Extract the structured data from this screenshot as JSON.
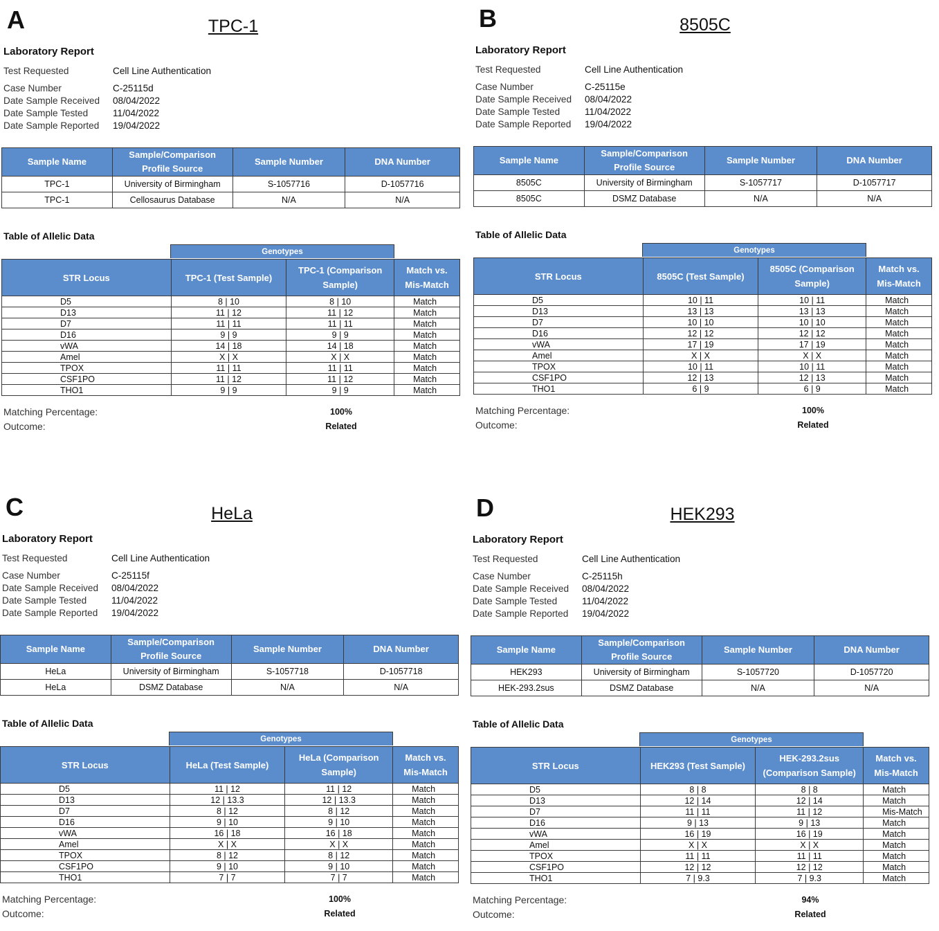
{
  "panels": [
    {
      "label": "A",
      "title": "TPC-1",
      "report_heading": "Laboratory Report",
      "info": [
        {
          "key": "Test Requested",
          "value": "Cell Line Authentication"
        },
        {
          "key": "Case Number",
          "value": "C-25115d"
        },
        {
          "key": "Date Sample Received",
          "value": "08/04/2022"
        },
        {
          "key": "Date Sample Tested",
          "value": "11/04/2022"
        },
        {
          "key": "Date Sample Reported",
          "value": "19/04/2022"
        }
      ],
      "sample_headers": [
        "Sample Name",
        "Sample/Comparison Profile Source",
        "Sample Number",
        "DNA Number"
      ],
      "sample_rows": [
        [
          "TPC-1",
          "University of Birmingham",
          "S-1057716",
          "D-1057716"
        ],
        [
          "TPC-1",
          "Cellosaurus Database",
          "N/A",
          "N/A"
        ]
      ],
      "allelic_title": "Table of Allelic Data",
      "genotypes_label": "Genotypes",
      "allelic_headers": [
        "STR Locus",
        "TPC-1 (Test Sample)",
        "TPC-1 (Comparison Sample)",
        "Match vs. Mis-Match"
      ],
      "allelic_rows": [
        [
          "D5",
          "8 | 10",
          "8 | 10",
          "Match"
        ],
        [
          "D13",
          "11 | 12",
          "11 | 12",
          "Match"
        ],
        [
          "D7",
          "11 | 11",
          "11 | 11",
          "Match"
        ],
        [
          "D16",
          "9 | 9",
          "9 | 9",
          "Match"
        ],
        [
          "vWA",
          "14 | 18",
          "14 | 18",
          "Match"
        ],
        [
          "Amel",
          "X | X",
          "X | X",
          "Match"
        ],
        [
          "TPOX",
          "11 | 11",
          "11 | 11",
          "Match"
        ],
        [
          "CSF1PO",
          "11 | 12",
          "11 | 12",
          "Match"
        ],
        [
          "THO1",
          "9 | 9",
          "9 | 9",
          "Match"
        ]
      ],
      "matching_label": "Matching Percentage:",
      "matching_value": "100%",
      "outcome_label": "Outcome:",
      "outcome_value": "Related"
    },
    {
      "label": "B",
      "title": "8505C",
      "report_heading": "Laboratory Report",
      "info": [
        {
          "key": "Test Requested",
          "value": "Cell Line Authentication"
        },
        {
          "key": "Case Number",
          "value": "C-25115e"
        },
        {
          "key": "Date Sample Received",
          "value": "08/04/2022"
        },
        {
          "key": "Date Sample Tested",
          "value": "11/04/2022"
        },
        {
          "key": "Date Sample Reported",
          "value": "19/04/2022"
        }
      ],
      "sample_headers": [
        "Sample Name",
        "Sample/Comparison Profile Source",
        "Sample Number",
        "DNA Number"
      ],
      "sample_rows": [
        [
          "8505C",
          "University of Birmingham",
          "S-1057717",
          "D-1057717"
        ],
        [
          "8505C",
          "DSMZ Database",
          "N/A",
          "N/A"
        ]
      ],
      "allelic_title": "Table of Allelic Data",
      "genotypes_label": "Genotypes",
      "allelic_headers": [
        "STR Locus",
        "8505C (Test Sample)",
        "8505C (Comparison Sample)",
        "Match vs. Mis-Match"
      ],
      "allelic_rows": [
        [
          "D5",
          "10 | 11",
          "10 | 11",
          "Match"
        ],
        [
          "D13",
          "13 | 13",
          "13 | 13",
          "Match"
        ],
        [
          "D7",
          "10 | 10",
          "10 | 10",
          "Match"
        ],
        [
          "D16",
          "12 | 12",
          "12 | 12",
          "Match"
        ],
        [
          "vWA",
          "17 | 19",
          "17 | 19",
          "Match"
        ],
        [
          "Amel",
          "X | X",
          "X | X",
          "Match"
        ],
        [
          "TPOX",
          "10 | 11",
          "10 | 11",
          "Match"
        ],
        [
          "CSF1PO",
          "12 | 13",
          "12 | 13",
          "Match"
        ],
        [
          "THO1",
          "6 | 9",
          "6 | 9",
          "Match"
        ]
      ],
      "matching_label": "Matching Percentage:",
      "matching_value": "100%",
      "outcome_label": "Outcome:",
      "outcome_value": "Related"
    },
    {
      "label": "C",
      "title": "HeLa",
      "report_heading": "Laboratory Report",
      "info": [
        {
          "key": "Test Requested",
          "value": "Cell Line Authentication"
        },
        {
          "key": "Case Number",
          "value": "C-25115f"
        },
        {
          "key": "Date Sample Received",
          "value": "08/04/2022"
        },
        {
          "key": "Date Sample Tested",
          "value": "11/04/2022"
        },
        {
          "key": "Date Sample Reported",
          "value": "19/04/2022"
        }
      ],
      "sample_headers": [
        "Sample Name",
        "Sample/Comparison Profile Source",
        "Sample Number",
        "DNA Number"
      ],
      "sample_rows": [
        [
          "HeLa",
          "University of Birmingham",
          "S-1057718",
          "D-1057718"
        ],
        [
          "HeLa",
          "DSMZ Database",
          "N/A",
          "N/A"
        ]
      ],
      "allelic_title": "Table of Allelic Data",
      "genotypes_label": "Genotypes",
      "allelic_headers": [
        "STR Locus",
        "HeLa (Test Sample)",
        "HeLa (Comparison Sample)",
        "Match vs. Mis-Match"
      ],
      "allelic_rows": [
        [
          "D5",
          "11 | 12",
          "11 | 12",
          "Match"
        ],
        [
          "D13",
          "12 | 13.3",
          "12 | 13.3",
          "Match"
        ],
        [
          "D7",
          "8 | 12",
          "8 | 12",
          "Match"
        ],
        [
          "D16",
          "9 | 10",
          "9 | 10",
          "Match"
        ],
        [
          "vWA",
          "16 | 18",
          "16 | 18",
          "Match"
        ],
        [
          "Amel",
          "X | X",
          "X | X",
          "Match"
        ],
        [
          "TPOX",
          "8 | 12",
          "8 | 12",
          "Match"
        ],
        [
          "CSF1PO",
          "9 | 10",
          "9 | 10",
          "Match"
        ],
        [
          "THO1",
          "7 | 7",
          "7 | 7",
          "Match"
        ]
      ],
      "matching_label": "Matching Percentage:",
      "matching_value": "100%",
      "outcome_label": "Outcome:",
      "outcome_value": "Related"
    },
    {
      "label": "D",
      "title": "HEK293",
      "report_heading": "Laboratory Report",
      "info": [
        {
          "key": "Test Requested",
          "value": "Cell Line Authentication"
        },
        {
          "key": "Case Number",
          "value": "C-25115h"
        },
        {
          "key": "Date Sample Received",
          "value": "08/04/2022"
        },
        {
          "key": "Date Sample Tested",
          "value": "11/04/2022"
        },
        {
          "key": "Date Sample Reported",
          "value": "19/04/2022"
        }
      ],
      "sample_headers": [
        "Sample Name",
        "Sample/Comparison Profile Source",
        "Sample Number",
        "DNA Number"
      ],
      "sample_rows": [
        [
          "HEK293",
          "University of Birmingham",
          "S-1057720",
          "D-1057720"
        ],
        [
          "HEK-293.2sus",
          "DSMZ Database",
          "N/A",
          "N/A"
        ]
      ],
      "allelic_title": "Table of Allelic Data",
      "genotypes_label": "Genotypes",
      "allelic_headers": [
        "STR Locus",
        "HEK293 (Test Sample)",
        "HEK-293.2sus (Comparison Sample)",
        "Match vs. Mis-Match"
      ],
      "allelic_rows": [
        [
          "D5",
          "8 | 8",
          "8 | 8",
          "Match"
        ],
        [
          "D13",
          "12 | 14",
          "12 | 14",
          "Match"
        ],
        [
          "D7",
          "11 | 11",
          "11 | 12",
          "Mis-Match"
        ],
        [
          "D16",
          "9 | 13",
          "9 | 13",
          "Match"
        ],
        [
          "vWA",
          "16 | 19",
          "16 | 19",
          "Match"
        ],
        [
          "Amel",
          "X | X",
          "X | X",
          "Match"
        ],
        [
          "TPOX",
          "11 | 11",
          "11 | 11",
          "Match"
        ],
        [
          "CSF1PO",
          "12 | 12",
          "12 | 12",
          "Match"
        ],
        [
          "THO1",
          "7 | 9.3",
          "7 | 9.3",
          "Match"
        ]
      ],
      "matching_label": "Matching Percentage:",
      "matching_value": "94%",
      "outcome_label": "Outcome:",
      "outcome_value": "Related"
    }
  ]
}
